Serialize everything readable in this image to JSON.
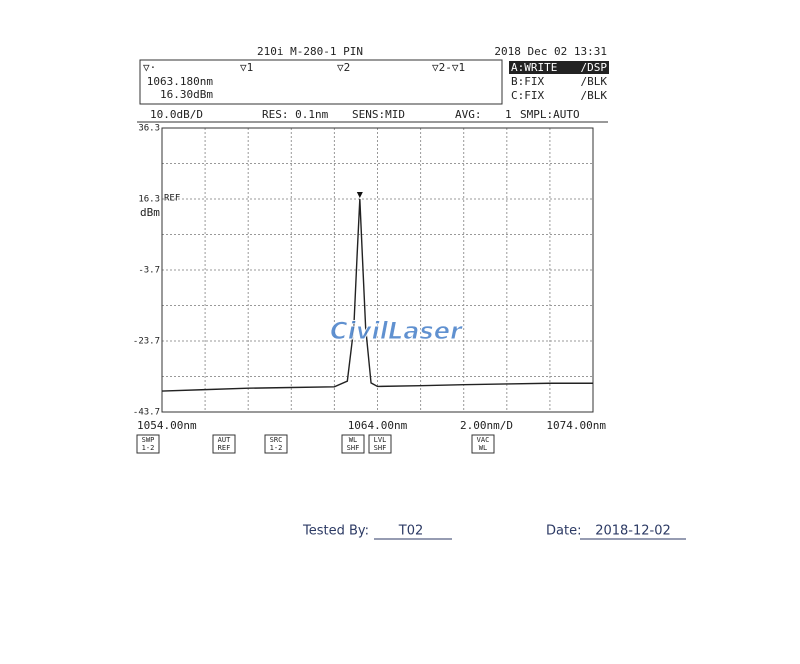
{
  "chart_data": {
    "type": "line",
    "title": "210i M-280-1 PIN",
    "timestamp": "2018 Dec 02 13:31",
    "marker_headers": [
      "▽·",
      "▽1",
      "▽2",
      "▽2-▽1"
    ],
    "marker": {
      "x": 1063.18,
      "y": 16.3,
      "x_label": "1063.180nm",
      "y_label": "16.30dBm"
    },
    "traces": [
      [
        "A:WRITE",
        "∕DSP"
      ],
      [
        "B:FIX",
        "∕BLK"
      ],
      [
        "C:FIX",
        "∕BLK"
      ]
    ],
    "status": [
      "10.0dB/D",
      "RES: 0.1nm",
      "SENS:MID",
      "AVG:",
      "1",
      "SMPL:AUTO"
    ],
    "ref_label": "REF",
    "y_unit": "dBm",
    "x_scale_label": "2.00nm/D",
    "x": [
      1054,
      1056,
      1058,
      1060,
      1062,
      1062.6,
      1062.9,
      1063.05,
      1063.18,
      1063.3,
      1063.45,
      1063.7,
      1064,
      1066,
      1068,
      1070,
      1072,
      1074
    ],
    "values": [
      -37.8,
      -37.4,
      -37,
      -36.8,
      -36.6,
      -35,
      -20,
      0,
      16.3,
      0,
      -20,
      -35.5,
      -36.5,
      -36.3,
      -36,
      -35.8,
      -35.6,
      -35.6
    ],
    "color": "#222222",
    "xlim": [
      1054,
      1074
    ],
    "ylim": [
      -43.7,
      36.3
    ],
    "xticks": [
      {
        "value": 1054,
        "label": "1054.00nm"
      },
      {
        "value": 1064,
        "label": "1064.00nm"
      },
      {
        "value": 1074,
        "label": "1074.00nm"
      }
    ],
    "yticks": [
      36.3,
      16.3,
      -3.7,
      -23.7,
      -43.7
    ],
    "xgrid": [
      1054,
      1056,
      1058,
      1060,
      1062,
      1064,
      1066,
      1068,
      1070,
      1072,
      1074
    ],
    "ygrid": [
      36.3,
      26.3,
      16.3,
      6.3,
      -3.7,
      -13.7,
      -23.7,
      -33.7,
      -43.7
    ],
    "grid": true,
    "buttons": [
      [
        "SWP",
        "1-2"
      ],
      [
        "AUT",
        "REF"
      ],
      [
        "SRC",
        "1-2"
      ],
      [
        "WL",
        "SHF"
      ],
      [
        "LVL",
        "SHF"
      ],
      [
        "VAC",
        "WL"
      ]
    ]
  },
  "watermark": "CivilLaser",
  "footer": {
    "tested_by_label": "Tested  By:",
    "tested_by": "T02",
    "date_label": "Date:",
    "date": "2018-12-02"
  }
}
